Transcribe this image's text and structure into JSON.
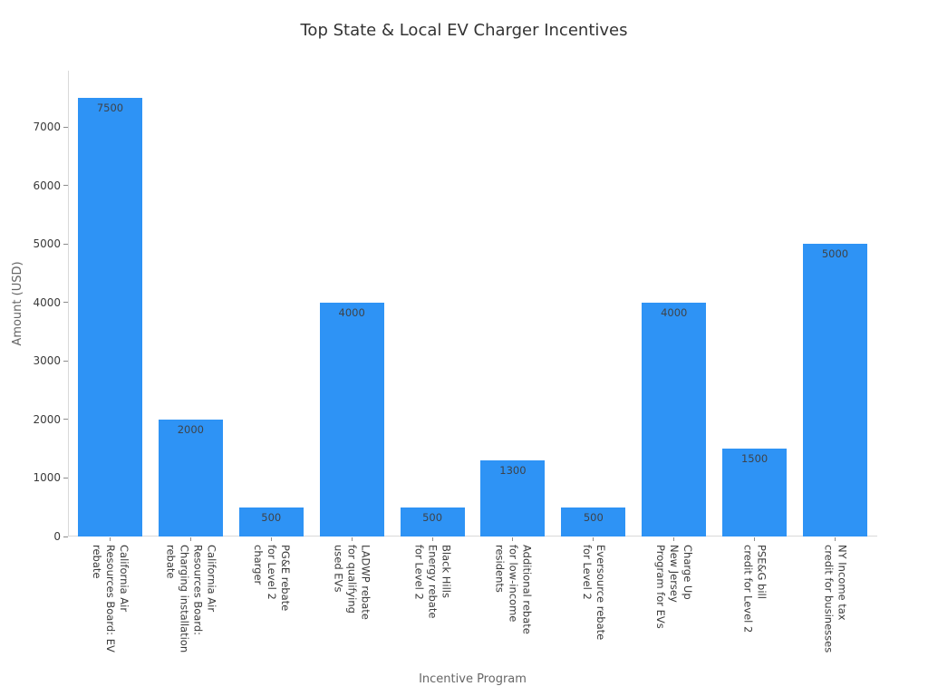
{
  "figure": {
    "title": "Top State & Local EV Charger Incentives"
  },
  "chart_data": {
    "type": "bar",
    "title": "Top State & Local EV Charger Incentives",
    "xlabel": "Incentive Program",
    "ylabel": "Amount (USD)",
    "categories": [
      "California Air Resources Board: EV rebate",
      "California Air Resources Board: Charging installation rebate",
      "PG&E rebate for Level 2 charger",
      "LADWP rebate for qualifying used EVs",
      "Black Hills Energy rebate for Level 2",
      "Additional rebate for low-income residents",
      "Eversource rebate for Level 2",
      "Charge Up New Jersey Program for EVs",
      "PSE&G bill credit for Level 2",
      "NY Income tax credit for businesses"
    ],
    "category_lines": [
      [
        "California Air",
        "Resources Board: EV",
        "rebate"
      ],
      [
        "California Air",
        "Resources Board:",
        "Charging installation",
        "rebate"
      ],
      [
        "PG&E rebate",
        "for Level 2",
        "charger"
      ],
      [
        "LADWP rebate",
        "for qualifying",
        "used EVs"
      ],
      [
        "Black Hills",
        "Energy rebate",
        "for Level 2"
      ],
      [
        "Additional rebate",
        "for low-income",
        "residents"
      ],
      [
        "Eversource rebate",
        "for Level 2"
      ],
      [
        "Charge Up",
        "New Jersey",
        "Program for EVs"
      ],
      [
        "PSE&G bill",
        "credit for Level 2"
      ],
      [
        "NY Income tax",
        "credit for businesses"
      ]
    ],
    "values": [
      7500,
      2000,
      500,
      4000,
      500,
      1300,
      500,
      4000,
      1500,
      5000
    ],
    "bar_labels": [
      "7500",
      "2000",
      "500",
      "4000",
      "500",
      "1300",
      "500",
      "4000",
      "1500",
      "5000"
    ],
    "yticks": [
      0,
      1000,
      2000,
      3000,
      4000,
      5000,
      6000,
      7000
    ],
    "ylim": [
      0,
      7960
    ],
    "grid": false,
    "legend": "none",
    "colors": {
      "bar": "#2E93F5",
      "title": "#333333",
      "tick_label": "#3a3a3a",
      "axis_label": "#666666",
      "spine": "#d9d9d9",
      "tick_mark": "#8c8c8c",
      "bar_label": "#3e4349",
      "background": "#ffffff"
    }
  }
}
